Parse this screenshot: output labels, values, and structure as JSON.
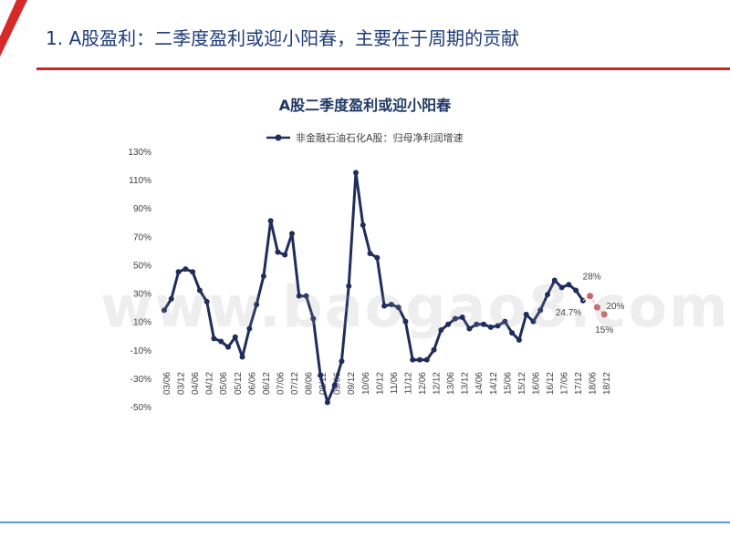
{
  "header": {
    "title": "1. A股盈利：二季度盈利或迎小阳春，主要在于周期的贡献"
  },
  "watermark": "www.baogao8.com",
  "colors": {
    "accent_red": "#d62a2a",
    "title_blue": "#1f3b78",
    "series_navy": "#1f2d5c",
    "forecast_red": "#c0504d",
    "footer_blue": "#5b9bd5"
  },
  "chart_data": {
    "type": "line",
    "title": "A股二季度盈利或迎小阳春",
    "xlabel": "",
    "ylabel": "",
    "ylim": [
      -50,
      130
    ],
    "yticks": [
      130,
      110,
      90,
      70,
      50,
      30,
      10,
      -10,
      -30,
      -50
    ],
    "ytick_labels": [
      "130%",
      "110%",
      "90%",
      "70%",
      "50%",
      "30%",
      "10%",
      "-10%",
      "-30%",
      "-50%"
    ],
    "xtick_labels": [
      "03/06",
      "03/12",
      "04/06",
      "04/12",
      "05/06",
      "05/12",
      "06/06",
      "06/12",
      "07/06",
      "07/12",
      "08/06",
      "08/12",
      "09/06",
      "09/12",
      "10/06",
      "10/12",
      "11/06",
      "11/12",
      "12/06",
      "12/12",
      "13/06",
      "13/12",
      "14/06",
      "14/12",
      "15/06",
      "15/12",
      "16/06",
      "16/12",
      "17/06",
      "17/12",
      "18/06",
      "18/12"
    ],
    "grid": false,
    "legend": "top-center",
    "series": [
      {
        "name": "非金融石油石化A股：归母净利润增速",
        "values": [
          18,
          26,
          45,
          47,
          45,
          32,
          24,
          -2,
          -4,
          -8,
          -1,
          -15,
          5,
          22,
          42,
          81,
          59,
          57,
          72,
          28,
          28,
          12,
          -28,
          -47,
          -35,
          -18,
          35,
          115,
          78,
          58,
          55,
          21,
          22,
          20,
          10,
          -17,
          -17,
          -17,
          -10,
          4,
          8,
          12,
          13,
          5,
          8,
          8,
          6,
          7,
          10,
          2,
          -3,
          15,
          10,
          18,
          29,
          39,
          34,
          36,
          32,
          24.7
        ]
      }
    ],
    "forecast": {
      "points": [
        {
          "x": 59,
          "y": 24.7
        },
        {
          "x": 60,
          "y": 28
        },
        {
          "x": 61,
          "y": 20
        },
        {
          "x": 62,
          "y": 15
        }
      ],
      "labels": [
        "24.7%",
        "28%",
        "20%",
        "15%"
      ]
    }
  }
}
